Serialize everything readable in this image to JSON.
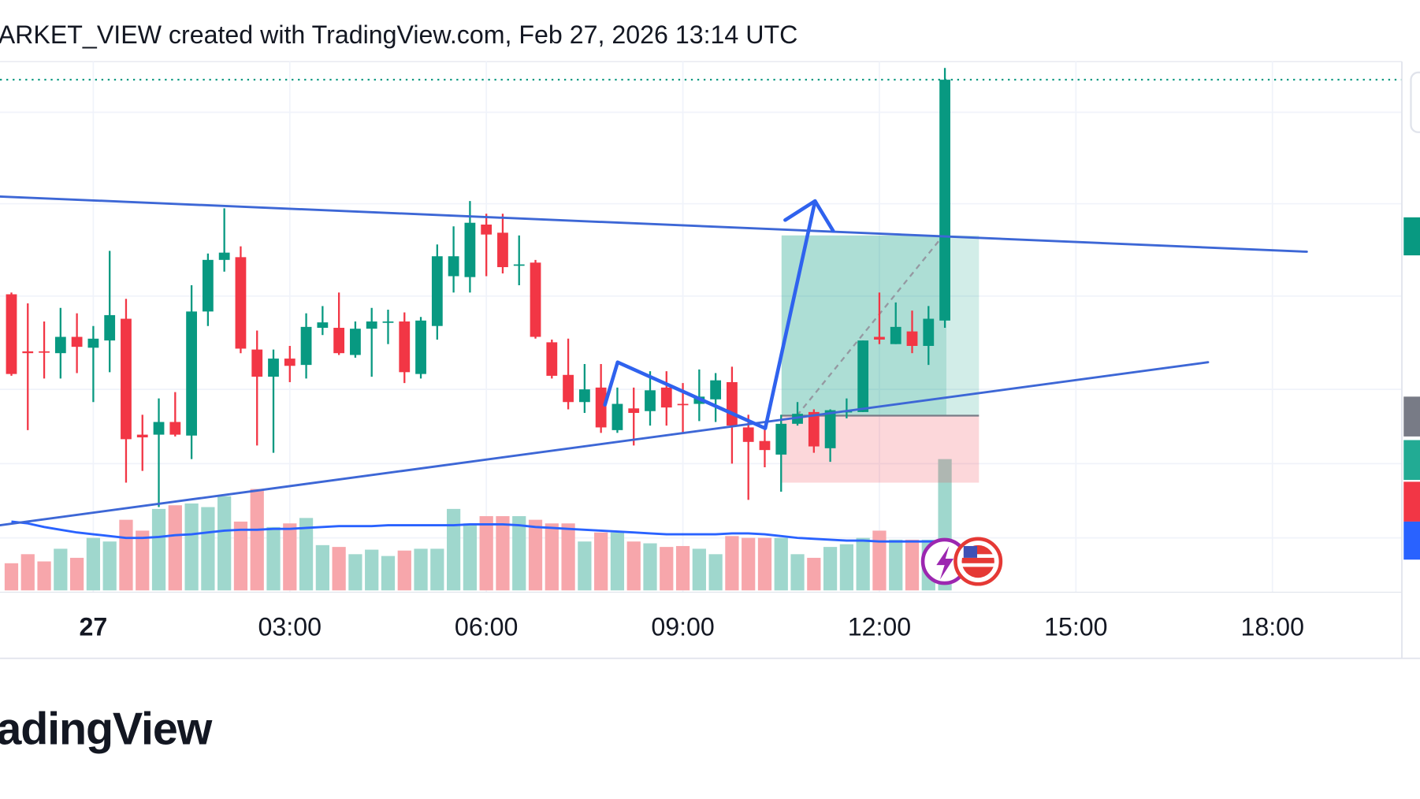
{
  "chart_data": {
    "type": "candlestick",
    "title": "ARKET_VIEW created with TradingView.com, Feb 27, 2026 13:14 UTC",
    "x": [
      -1.25,
      -1,
      -0.75,
      -0.5,
      -0.25,
      0,
      0.25,
      0.5,
      0.75,
      1,
      1.25,
      1.5,
      1.75,
      2,
      2.25,
      2.5,
      2.75,
      3,
      3.25,
      3.5,
      3.75,
      4,
      4.25,
      4.5,
      4.75,
      5,
      5.25,
      5.5,
      5.75,
      6,
      6.25,
      6.5,
      6.75,
      7,
      7.25,
      7.5,
      7.75,
      8,
      8.25,
      8.5,
      8.75,
      9,
      9.25,
      9.5,
      9.75,
      10,
      10.25,
      10.5,
      10.75,
      11,
      11.25,
      11.5,
      11.75,
      12,
      12.25,
      12.5,
      12.75,
      13
    ],
    "open": [
      325,
      262,
      262,
      260,
      278,
      266,
      274,
      298,
      170,
      170,
      184,
      169,
      306,
      363,
      366,
      264,
      234,
      254,
      247,
      288,
      288,
      258,
      287,
      294,
      295,
      237,
      290,
      345,
      344,
      402,
      393,
      357,
      360,
      272,
      236,
      206,
      222,
      175,
      199,
      196,
      222,
      204,
      204,
      209,
      228,
      178,
      163,
      148,
      182,
      195,
      155,
      195,
      195,
      278,
      270,
      284,
      268,
      296
    ],
    "high": [
      327,
      315,
      295,
      310,
      304,
      290,
      373,
      320,
      192,
      210,
      217,
      335,
      370,
      420,
      378,
      285,
      264,
      268,
      304,
      312,
      327,
      295,
      310,
      308,
      305,
      300,
      380,
      400,
      428,
      414,
      414,
      390,
      363,
      275,
      276,
      248,
      248,
      222,
      222,
      240,
      240,
      227,
      242,
      238,
      245,
      192,
      180,
      192,
      206,
      198,
      198,
      210,
      274,
      327,
      316,
      307,
      312,
      575
    ],
    "low": [
      235,
      175,
      232,
      232,
      238,
      206,
      239,
      117,
      130,
      90,
      168,
      143,
      290,
      350,
      260,
      158,
      150,
      228,
      232,
      280,
      258,
      255,
      234,
      270,
      227,
      232,
      275,
      327,
      327,
      345,
      348,
      335,
      276,
      232,
      198,
      194,
      172,
      172,
      158,
      180,
      180,
      172,
      185,
      184,
      138,
      98,
      134,
      107,
      180,
      150,
      140,
      188,
      195,
      270,
      270,
      260,
      247,
      288
    ],
    "close": [
      237,
      260,
      261,
      278,
      267,
      276,
      302,
      165,
      167,
      184,
      170,
      306,
      363,
      371,
      265,
      234,
      254,
      246,
      289,
      294,
      260,
      287,
      295,
      295,
      239,
      296,
      367,
      367,
      404,
      391,
      355,
      358,
      278,
      235,
      206,
      220,
      178,
      204,
      194,
      219,
      200,
      203,
      212,
      230,
      180,
      162,
      153,
      182,
      193,
      157,
      197,
      196,
      274,
      275,
      289,
      268,
      298,
      562
    ],
    "volume": [
      30,
      40,
      32,
      46,
      36,
      58,
      54,
      78,
      66,
      90,
      94,
      96,
      92,
      104,
      76,
      112,
      70,
      74,
      80,
      50,
      48,
      40,
      45,
      38,
      44,
      46,
      46,
      90,
      74,
      82,
      82,
      82,
      78,
      74,
      74,
      54,
      64,
      64,
      54,
      52,
      48,
      49,
      46,
      40,
      60,
      58,
      58,
      58,
      40,
      36,
      48,
      51,
      58,
      66,
      56,
      56,
      56,
      145
    ],
    "volume_ma": [
      76,
      74,
      70,
      67,
      64,
      62,
      60,
      58,
      58,
      59,
      61,
      62,
      64,
      66,
      67,
      67,
      68,
      68,
      69,
      70,
      71,
      71,
      71,
      72,
      72,
      72,
      72,
      72,
      73,
      73,
      73,
      72,
      70,
      69,
      68,
      67,
      66,
      65,
      64,
      63,
      62,
      62,
      62,
      62,
      63,
      63,
      62,
      60,
      58,
      57,
      56,
      55,
      55,
      54,
      54,
      54,
      54,
      54
    ],
    "up_color": "#089981",
    "down_color": "#f23645",
    "volume_up_color": "#9fd7cd",
    "volume_down_color": "#f7a6ab",
    "volume_ma_color": "#2962ff",
    "xlim": [
      -1.424,
      19.976
    ],
    "ylim": [
      0,
      600
    ],
    "volume_lim": [
      0,
      200
    ],
    "xticks": [
      {
        "value": 0,
        "label": "27"
      },
      {
        "value": 3,
        "label": "03:00"
      },
      {
        "value": 6,
        "label": "06:00"
      },
      {
        "value": 9,
        "label": "09:00"
      },
      {
        "value": 12,
        "label": "12:00"
      },
      {
        "value": 15,
        "label": "15:00"
      },
      {
        "value": 18,
        "label": "18:00"
      }
    ],
    "grid": true
  },
  "footer": {
    "logo": "adingView"
  }
}
